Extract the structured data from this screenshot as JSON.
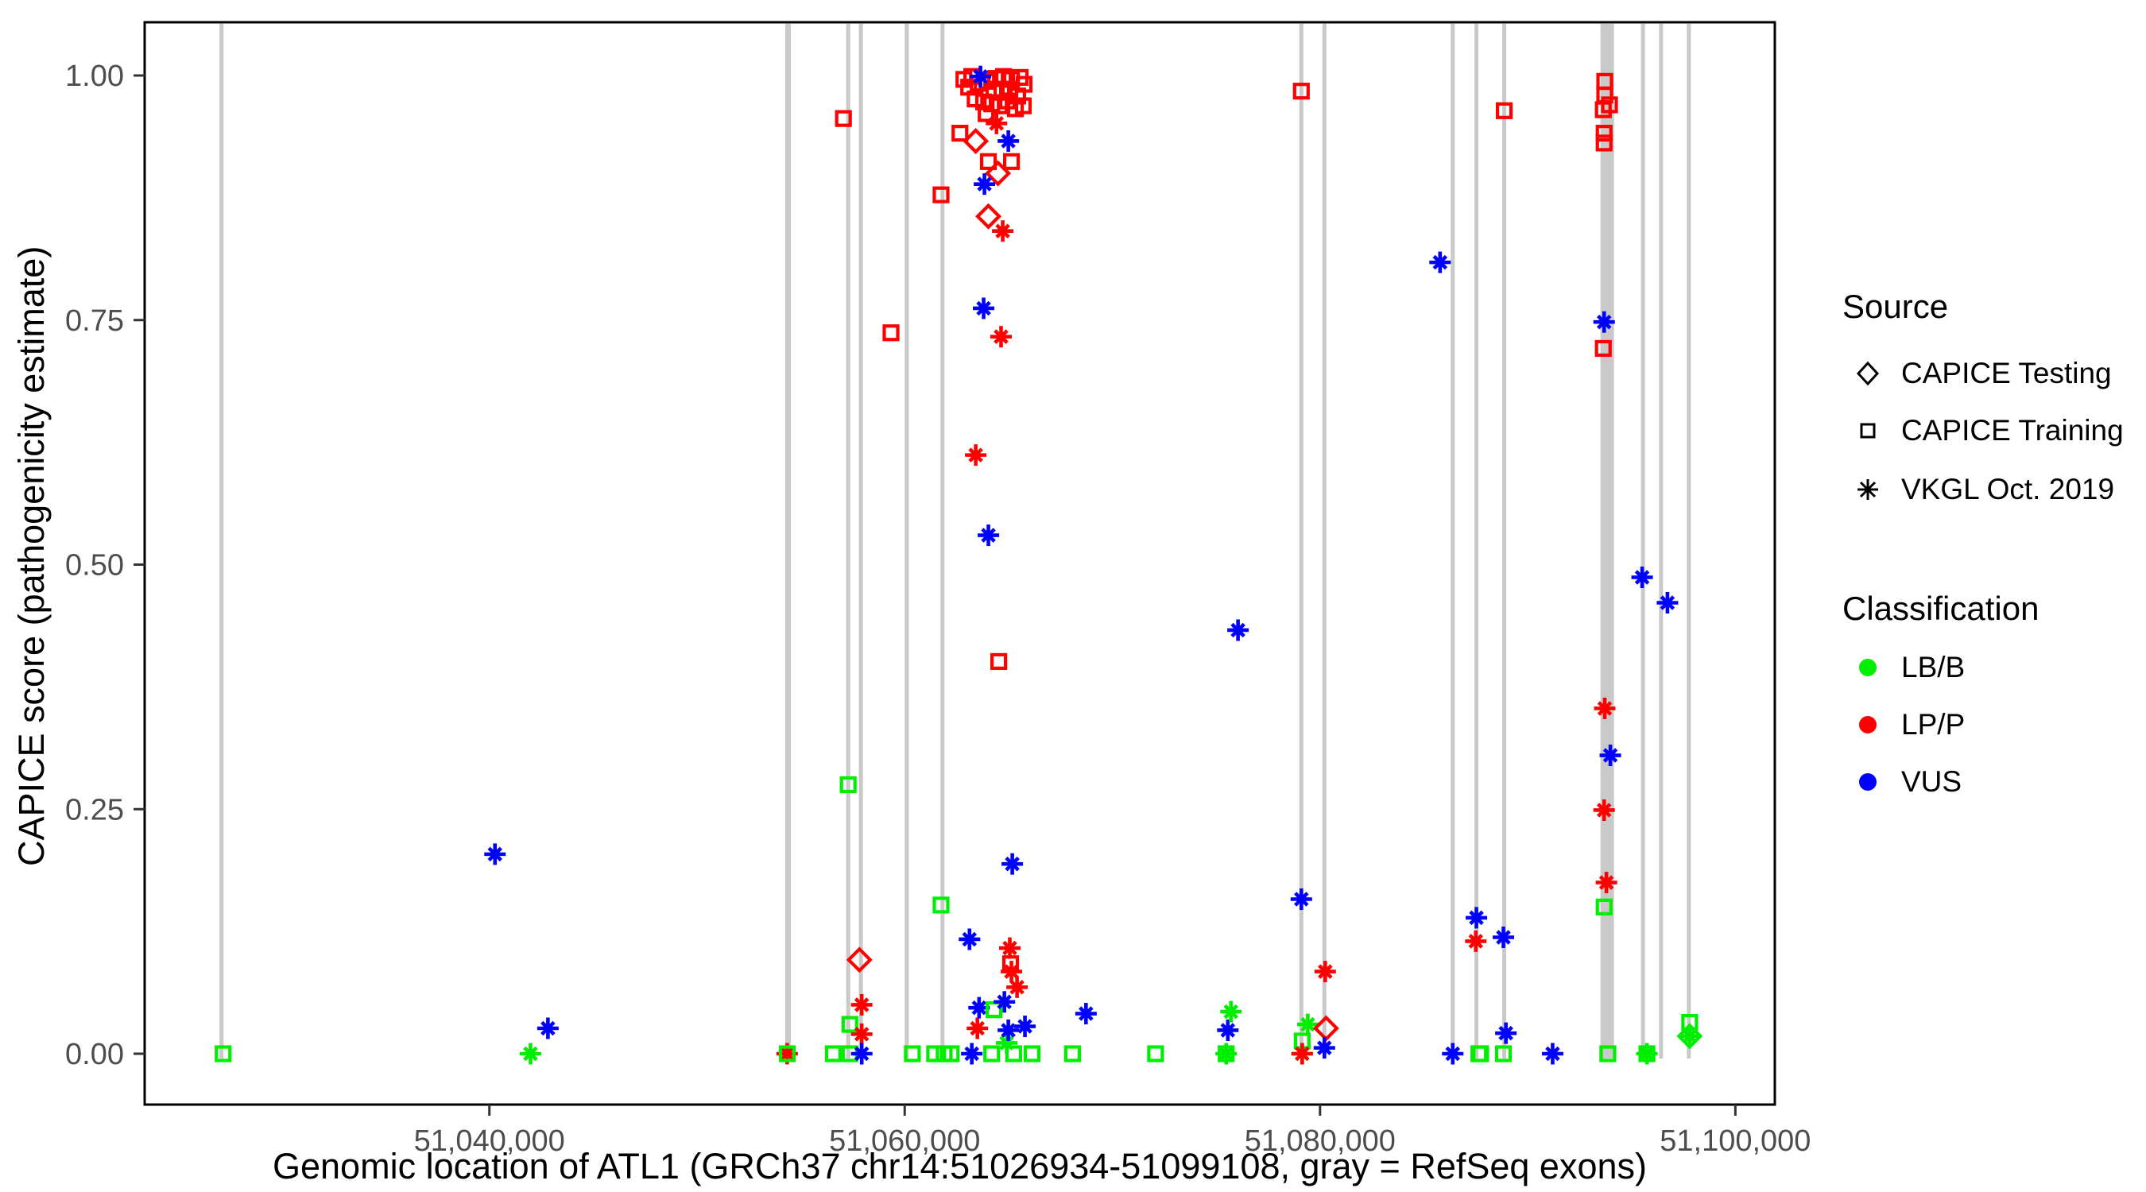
{
  "chart_data": {
    "type": "scatter",
    "title": "",
    "xlabel": "Genomic location of ATL1 (GRCh37 chr14:51026934-51099108, gray = RefSeq exons)",
    "ylabel": "CAPICE score (pathogenicity estimate)",
    "xlim": [
      51023400,
      51101900
    ],
    "ylim": [
      0,
      1
    ],
    "grid": false,
    "legend_position": "right",
    "axis_text_color": "#4D4D4D",
    "exon_color": "#C9C9C9",
    "x_ticks": [
      {
        "value": 51040000,
        "label": "51,040,000"
      },
      {
        "value": 51060000,
        "label": "51,060,000"
      },
      {
        "value": 51080000,
        "label": "51,080,000"
      },
      {
        "value": 51100000,
        "label": "51,100,000"
      }
    ],
    "y_ticks": [
      {
        "value": 0.0,
        "label": "0.00"
      },
      {
        "value": 0.25,
        "label": "0.25"
      },
      {
        "value": 0.5,
        "label": "0.50"
      },
      {
        "value": 0.75,
        "label": "0.75"
      },
      {
        "value": 1.0,
        "label": "1.00"
      }
    ],
    "exons_note": "RefSeq exons drawn as vertical gray bars; [genomic_position, bar_width_px]",
    "exons": [
      [
        51027100,
        5
      ],
      [
        51054380,
        7
      ],
      [
        51057280,
        5
      ],
      [
        51057890,
        5
      ],
      [
        51060100,
        5
      ],
      [
        51061820,
        5
      ],
      [
        51079100,
        5
      ],
      [
        51080210,
        5
      ],
      [
        51086390,
        5
      ],
      [
        51087530,
        5
      ],
      [
        51088870,
        5
      ],
      [
        51093830,
        17
      ],
      [
        51095550,
        5
      ],
      [
        51096420,
        5
      ],
      [
        51097760,
        5
      ]
    ],
    "shapes": {
      "d": "diamond = CAPICE Testing",
      "s": "square = CAPICE Training",
      "a": "asterisk = VKGL Oct. 2019"
    },
    "classes": {
      "b": {
        "label": "LB/B",
        "color": "#00EE00"
      },
      "p": {
        "label": "LP/P",
        "color": "#FF0000"
      },
      "v": {
        "label": "VUS",
        "color": "#0000FF"
      }
    },
    "points_note": "[genomic_position, CAPICE_score, shape, classification]",
    "points": [
      [
        51027180,
        0.0,
        "s",
        "b"
      ],
      [
        51040270,
        0.204,
        "a",
        "v"
      ],
      [
        51041980,
        0.0,
        "a",
        "b"
      ],
      [
        51042820,
        0.026,
        "a",
        "v"
      ],
      [
        51054340,
        0.0,
        "a",
        "p"
      ],
      [
        51054340,
        0.0,
        "s",
        "b"
      ],
      [
        51056560,
        0.0,
        "s",
        "b"
      ],
      [
        51057050,
        0.956,
        "s",
        "p"
      ],
      [
        51057280,
        0.275,
        "s",
        "b"
      ],
      [
        51057360,
        0.03,
        "s",
        "b"
      ],
      [
        51057360,
        0.0,
        "s",
        "b"
      ],
      [
        51057820,
        0.096,
        "d",
        "p"
      ],
      [
        51057930,
        0.05,
        "a",
        "p"
      ],
      [
        51057930,
        0.02,
        "a",
        "p"
      ],
      [
        51057930,
        0.0,
        "a",
        "v"
      ],
      [
        51059340,
        0.737,
        "s",
        "p"
      ],
      [
        51060370,
        0.0,
        "s",
        "b"
      ],
      [
        51061440,
        0.0,
        "s",
        "b"
      ],
      [
        51061750,
        0.152,
        "s",
        "b"
      ],
      [
        51061900,
        0.0,
        "s",
        "b"
      ],
      [
        51062240,
        0.0,
        "s",
        "b"
      ],
      [
        51063120,
        0.117,
        "a",
        "v"
      ],
      [
        51063230,
        0.0,
        "a",
        "v"
      ],
      [
        51063500,
        0.026,
        "a",
        "p"
      ],
      [
        51063580,
        0.047,
        "a",
        "v"
      ],
      [
        51064190,
        0.0,
        "s",
        "b"
      ],
      [
        51064300,
        0.045,
        "s",
        "b"
      ],
      [
        51064800,
        0.053,
        "a",
        "v"
      ],
      [
        51064910,
        0.011,
        "a",
        "b"
      ],
      [
        51064990,
        0.024,
        "a",
        "v"
      ],
      [
        51065250,
        0.0,
        "s",
        "b"
      ],
      [
        51065410,
        0.068,
        "a",
        "p"
      ],
      [
        51065790,
        0.028,
        "a",
        "v"
      ],
      [
        51066130,
        0.0,
        "s",
        "b"
      ],
      [
        51068080,
        0.0,
        "s",
        "b"
      ],
      [
        51068730,
        0.041,
        "a",
        "v"
      ],
      [
        51072080,
        0.0,
        "s",
        "b"
      ],
      [
        51075480,
        0.0,
        "s",
        "b"
      ],
      [
        51075480,
        0.0,
        "a",
        "b"
      ],
      [
        51075560,
        0.024,
        "a",
        "v"
      ],
      [
        51075710,
        0.043,
        "a",
        "b"
      ],
      [
        51076050,
        0.433,
        "a",
        "v"
      ],
      [
        51063800,
        0.762,
        "a",
        "v"
      ],
      [
        51064640,
        0.733,
        "a",
        "p"
      ],
      [
        51063420,
        0.612,
        "a",
        "p"
      ],
      [
        51064030,
        0.53,
        "a",
        "v"
      ],
      [
        51064530,
        0.401,
        "s",
        "p"
      ],
      [
        51065180,
        0.194,
        "a",
        "v"
      ],
      [
        51065060,
        0.108,
        "a",
        "p"
      ],
      [
        51065100,
        0.092,
        "s",
        "p"
      ],
      [
        51065140,
        0.084,
        "a",
        "p"
      ],
      [
        51062850,
        0.996,
        "s",
        "p"
      ],
      [
        51063230,
        0.999,
        "s",
        "p"
      ],
      [
        51063540,
        0.992,
        "s",
        "p"
      ],
      [
        51063080,
        0.988,
        "s",
        "p"
      ],
      [
        51063960,
        0.994,
        "s",
        "p"
      ],
      [
        51064380,
        0.997,
        "s",
        "p"
      ],
      [
        51064760,
        0.999,
        "s",
        "p"
      ],
      [
        51065140,
        0.996,
        "s",
        "p"
      ],
      [
        51065560,
        0.998,
        "s",
        "p"
      ],
      [
        51065750,
        0.991,
        "s",
        "p"
      ],
      [
        51064300,
        0.986,
        "s",
        "p"
      ],
      [
        51064680,
        0.983,
        "s",
        "p"
      ],
      [
        51065060,
        0.986,
        "s",
        "p"
      ],
      [
        51065440,
        0.979,
        "s",
        "p"
      ],
      [
        51063390,
        0.976,
        "s",
        "p"
      ],
      [
        51063800,
        0.973,
        "s",
        "p"
      ],
      [
        51064190,
        0.971,
        "s",
        "p"
      ],
      [
        51064570,
        0.969,
        "s",
        "p"
      ],
      [
        51064950,
        0.974,
        "s",
        "p"
      ],
      [
        51065330,
        0.966,
        "s",
        "p"
      ],
      [
        51065710,
        0.969,
        "s",
        "p"
      ],
      [
        51063920,
        0.961,
        "s",
        "p"
      ],
      [
        51063650,
        0.999,
        "a",
        "v"
      ],
      [
        51064420,
        0.951,
        "a",
        "p"
      ],
      [
        51062660,
        0.941,
        "s",
        "p"
      ],
      [
        51063420,
        0.933,
        "d",
        "p"
      ],
      [
        51064990,
        0.933,
        "a",
        "v"
      ],
      [
        51064030,
        0.912,
        "s",
        "p"
      ],
      [
        51065140,
        0.912,
        "s",
        "p"
      ],
      [
        51064490,
        0.9,
        "d",
        "p"
      ],
      [
        51063840,
        0.889,
        "a",
        "v"
      ],
      [
        51061750,
        0.878,
        "s",
        "p"
      ],
      [
        51064030,
        0.856,
        "d",
        "p"
      ],
      [
        51064720,
        0.841,
        "a",
        "p"
      ],
      [
        51079100,
        0.984,
        "s",
        "p"
      ],
      [
        51079100,
        0.158,
        "a",
        "v"
      ],
      [
        51079140,
        0.013,
        "s",
        "b"
      ],
      [
        51079410,
        0.03,
        "a",
        "b"
      ],
      [
        51079140,
        0.0,
        "a",
        "b"
      ],
      [
        51079140,
        0.0,
        "a",
        "p"
      ],
      [
        51080250,
        0.084,
        "a",
        "p"
      ],
      [
        51080290,
        0.026,
        "d",
        "p"
      ],
      [
        51080210,
        0.006,
        "a",
        "v"
      ],
      [
        51085780,
        0.809,
        "a",
        "v"
      ],
      [
        51086390,
        0.0,
        "a",
        "v"
      ],
      [
        51087530,
        0.139,
        "a",
        "v"
      ],
      [
        51087500,
        0.115,
        "a",
        "p"
      ],
      [
        51087650,
        0.0,
        "s",
        "b"
      ],
      [
        51087730,
        0.0,
        "s",
        "b"
      ],
      [
        51088870,
        0.964,
        "s",
        "p"
      ],
      [
        51088830,
        0.119,
        "a",
        "v"
      ],
      [
        51088950,
        0.021,
        "a",
        "v"
      ],
      [
        51088830,
        0.0,
        "s",
        "b"
      ],
      [
        51091200,
        0.0,
        "a",
        "v"
      ],
      [
        51093710,
        0.994,
        "s",
        "p"
      ],
      [
        51093710,
        0.98,
        "s",
        "p"
      ],
      [
        51093940,
        0.97,
        "s",
        "p"
      ],
      [
        51093640,
        0.965,
        "s",
        "p"
      ],
      [
        51093680,
        0.941,
        "s",
        "p"
      ],
      [
        51093680,
        0.931,
        "s",
        "p"
      ],
      [
        51093680,
        0.748,
        "a",
        "v"
      ],
      [
        51093640,
        0.721,
        "s",
        "p"
      ],
      [
        51093710,
        0.353,
        "a",
        "p"
      ],
      [
        51093980,
        0.305,
        "a",
        "v"
      ],
      [
        51093680,
        0.249,
        "a",
        "p"
      ],
      [
        51093790,
        0.175,
        "a",
        "p"
      ],
      [
        51093680,
        0.15,
        "s",
        "b"
      ],
      [
        51093860,
        0.0,
        "s",
        "b"
      ],
      [
        51095510,
        0.487,
        "a",
        "v"
      ],
      [
        51095740,
        0.0,
        "s",
        "b"
      ],
      [
        51095740,
        0.0,
        "a",
        "b"
      ],
      [
        51096730,
        0.461,
        "a",
        "v"
      ],
      [
        51097800,
        0.032,
        "s",
        "b"
      ],
      [
        51097800,
        0.018,
        "d",
        "b"
      ],
      [
        51097800,
        0.018,
        "a",
        "b"
      ]
    ]
  },
  "legend": {
    "source_title": "Source",
    "source_items": [
      {
        "label": "CAPICE Testing",
        "shape": "diamond"
      },
      {
        "label": "CAPICE Training",
        "shape": "square"
      },
      {
        "label": "VKGL Oct. 2019",
        "shape": "asterisk"
      }
    ],
    "classification_title": "Classification",
    "classification_items": [
      {
        "label": "LB/B",
        "color": "#00EE00"
      },
      {
        "label": "LP/P",
        "color": "#FF0000"
      },
      {
        "label": "VUS",
        "color": "#0000FF"
      }
    ]
  }
}
